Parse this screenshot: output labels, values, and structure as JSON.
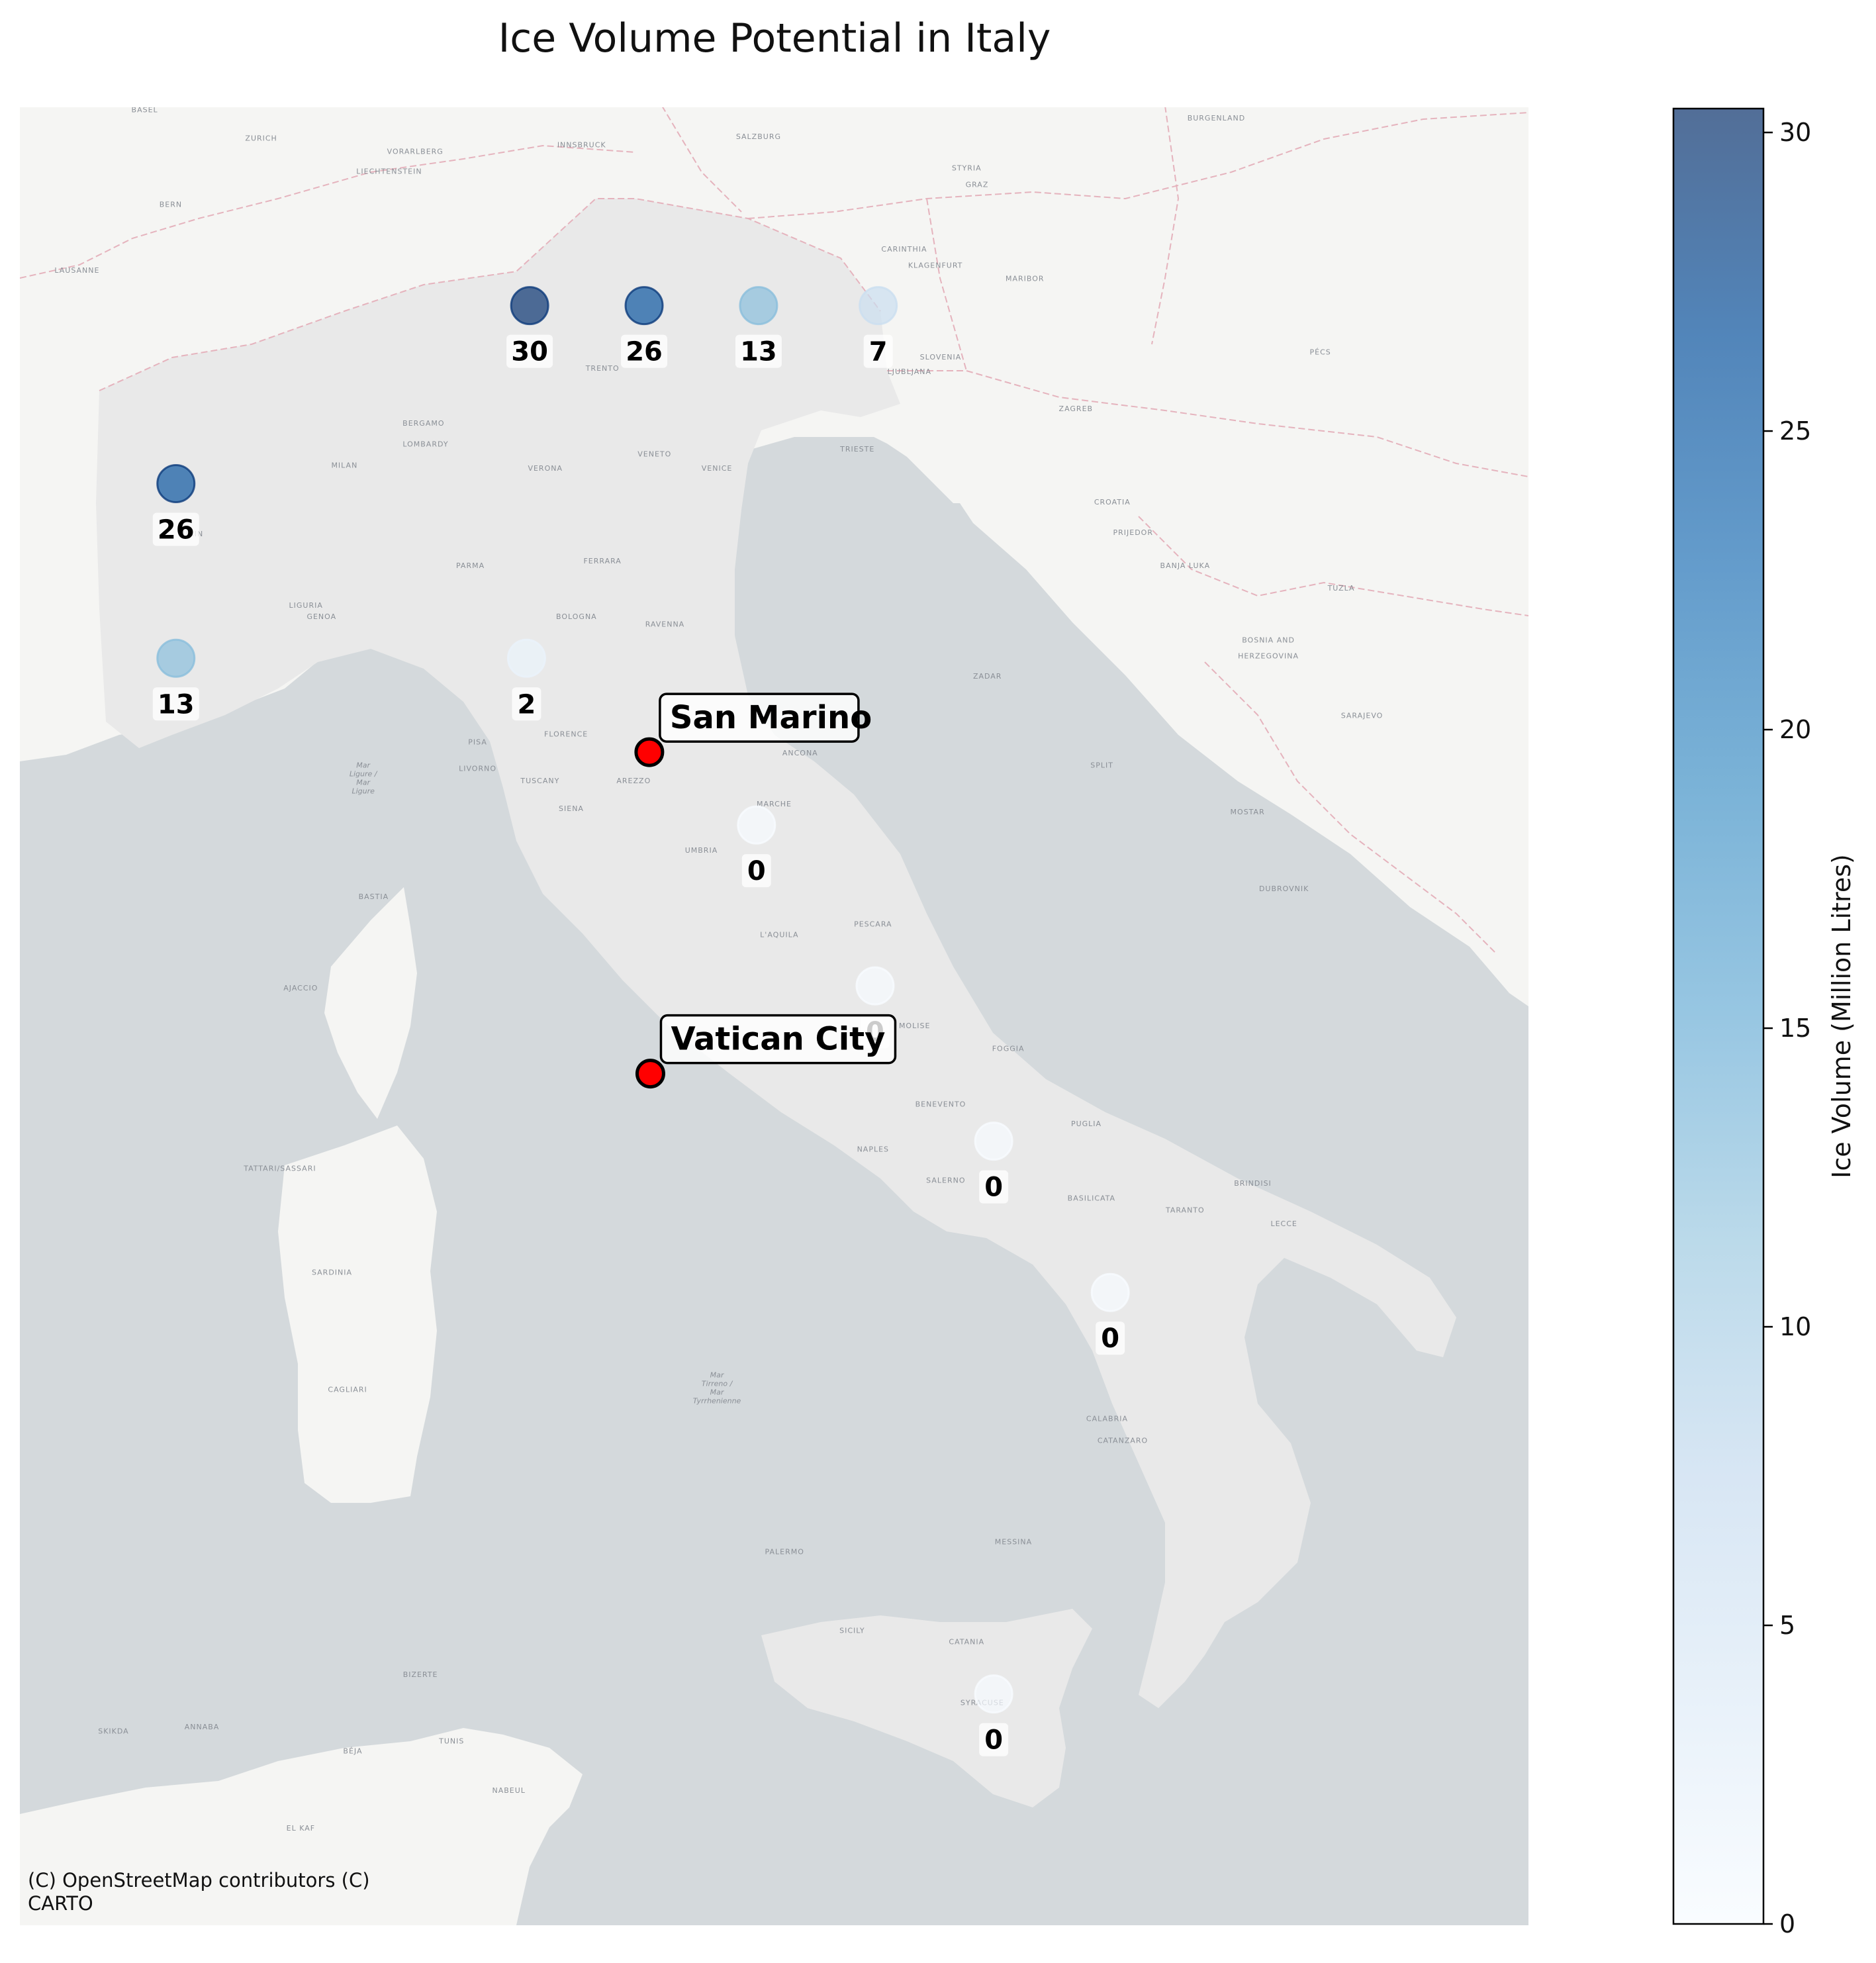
{
  "title": "Ice Volume Potential in Italy",
  "attribution": [
    "(C) OpenStreetMap contributors (C)",
    "CARTO"
  ],
  "colorbar": {
    "label": "Ice Volume (Million Litres)",
    "min": 0,
    "max": 30.4,
    "ticks": [
      "0",
      "5",
      "10",
      "15",
      "20",
      "25",
      "30"
    ],
    "tick_values": [
      0,
      5,
      10,
      15,
      20,
      25,
      30
    ],
    "colors": [
      "#f7fbff",
      "#deebf7",
      "#c6dbef",
      "#9ecae1",
      "#6baed6",
      "#4292c6",
      "#2171b5",
      "#08519c",
      "#08306b"
    ]
  },
  "colors": {
    "sea": "#d4d9dc",
    "land": "#f5f5f3",
    "italy": "#e9e9e9",
    "border": "#e5b3bd",
    "highlight": "#ff0000"
  },
  "map": {
    "lon_range": [
      6.0,
      20.5
    ],
    "lat_range": [
      35.5,
      47.5
    ]
  },
  "chart_data": {
    "type": "scatter",
    "title": "Ice Volume Potential in Italy",
    "colorbar_label": "Ice Volume (Million Litres)",
    "points": [
      {
        "lon": 10.9,
        "lat": 46.3,
        "value": 30,
        "label": "30"
      },
      {
        "lon": 12.0,
        "lat": 46.3,
        "value": 26,
        "label": "26"
      },
      {
        "lon": 13.1,
        "lat": 46.3,
        "value": 13,
        "label": "13"
      },
      {
        "lon": 14.25,
        "lat": 46.3,
        "value": 7,
        "label": "7"
      },
      {
        "lon": 7.5,
        "lat": 45.2,
        "value": 26,
        "label": "26"
      },
      {
        "lon": 7.5,
        "lat": 44.1,
        "value": 13,
        "label": "13"
      },
      {
        "lon": 10.87,
        "lat": 44.1,
        "value": 2,
        "label": "2"
      },
      {
        "lon": 13.08,
        "lat": 43.03,
        "value": 0,
        "label": "0"
      },
      {
        "lon": 14.22,
        "lat": 41.98,
        "value": 0,
        "label": "0"
      },
      {
        "lon": 15.36,
        "lat": 40.95,
        "value": 0,
        "label": "0"
      },
      {
        "lon": 16.48,
        "lat": 39.93,
        "value": 0,
        "label": "0"
      },
      {
        "lon": 15.36,
        "lat": 37.15,
        "value": 0,
        "label": "0"
      }
    ],
    "highlights": [
      {
        "name": "San Marino",
        "lon": 12.05,
        "lat": 43.5
      },
      {
        "name": "Vatican City",
        "lon": 12.06,
        "lat": 41.4
      }
    ]
  },
  "places": [
    {
      "name": "BASEL",
      "lon": 7.2,
      "lat": 47.47
    },
    {
      "name": "ZURICH",
      "lon": 8.32,
      "lat": 47.3
    },
    {
      "name": "VORARLBERG",
      "lon": 9.8,
      "lat": 47.22
    },
    {
      "name": "INNSBRUCK",
      "lon": 11.4,
      "lat": 47.26
    },
    {
      "name": "SALZBURG",
      "lon": 13.1,
      "lat": 47.31
    },
    {
      "name": "BURGENLAND",
      "lon": 17.5,
      "lat": 47.42
    },
    {
      "name": "LIECHTENSTEIN",
      "lon": 9.55,
      "lat": 47.1
    },
    {
      "name": "STYRIA",
      "lon": 15.1,
      "lat": 47.12
    },
    {
      "name": "GRAZ",
      "lon": 15.2,
      "lat": 47.02
    },
    {
      "name": "BERN",
      "lon": 7.45,
      "lat": 46.9
    },
    {
      "name": "CARINTHIA",
      "lon": 14.5,
      "lat": 46.63
    },
    {
      "name": "KLAGENFURT",
      "lon": 14.8,
      "lat": 46.53
    },
    {
      "name": "LAUSANNE",
      "lon": 6.55,
      "lat": 46.5
    },
    {
      "name": "MARIBOR",
      "lon": 15.66,
      "lat": 46.45
    },
    {
      "name": "SLOVENIA",
      "lon": 14.85,
      "lat": 45.97
    },
    {
      "name": "LJUBLJANA",
      "lon": 14.55,
      "lat": 45.88
    },
    {
      "name": "TRENTO",
      "lon": 11.6,
      "lat": 45.9
    },
    {
      "name": "BERGAMO",
      "lon": 9.88,
      "lat": 45.56
    },
    {
      "name": "LOMBARDY",
      "lon": 9.9,
      "lat": 45.43
    },
    {
      "name": "MILAN",
      "lon": 9.12,
      "lat": 45.3
    },
    {
      "name": "VENETO",
      "lon": 12.1,
      "lat": 45.37
    },
    {
      "name": "VERONA",
      "lon": 11.05,
      "lat": 45.28
    },
    {
      "name": "VENICE",
      "lon": 12.7,
      "lat": 45.28
    },
    {
      "name": "TRIESTE",
      "lon": 14.05,
      "lat": 45.4
    },
    {
      "name": "ZAGREB",
      "lon": 16.15,
      "lat": 45.65
    },
    {
      "name": "CROATIA",
      "lon": 16.5,
      "lat": 45.07
    },
    {
      "name": "PÉCS",
      "lon": 18.5,
      "lat": 46.0
    },
    {
      "name": "TURIN",
      "lon": 7.64,
      "lat": 44.87
    },
    {
      "name": "PARMA",
      "lon": 10.33,
      "lat": 44.67
    },
    {
      "name": "FERRARA",
      "lon": 11.6,
      "lat": 44.7
    },
    {
      "name": "BOLOGNA",
      "lon": 11.35,
      "lat": 44.35
    },
    {
      "name": "RAVENNA",
      "lon": 12.2,
      "lat": 44.3
    },
    {
      "name": "PRIJEDOR",
      "lon": 16.7,
      "lat": 44.88
    },
    {
      "name": "BANJA LUKA",
      "lon": 17.2,
      "lat": 44.67
    },
    {
      "name": "TUZLA",
      "lon": 18.7,
      "lat": 44.53
    },
    {
      "name": "GENOA",
      "lon": 8.9,
      "lat": 44.35
    },
    {
      "name": "LIGURIA",
      "lon": 8.75,
      "lat": 44.42
    },
    {
      "name": "BOSNIA AND",
      "lon": 18.0,
      "lat": 44.2
    },
    {
      "name": "HERZEGOVINA",
      "lon": 18.0,
      "lat": 44.1
    },
    {
      "name": "ZADAR",
      "lon": 15.3,
      "lat": 43.97
    },
    {
      "name": "SARAJEVO",
      "lon": 18.9,
      "lat": 43.72
    },
    {
      "name": "FLORENCE",
      "lon": 11.25,
      "lat": 43.6
    },
    {
      "name": "PISA",
      "lon": 10.4,
      "lat": 43.55
    },
    {
      "name": "LIVORNO",
      "lon": 10.4,
      "lat": 43.38
    },
    {
      "name": "TUSCANY",
      "lon": 11.0,
      "lat": 43.3
    },
    {
      "name": "AREZZO",
      "lon": 11.9,
      "lat": 43.3
    },
    {
      "name": "ANCONA",
      "lon": 13.5,
      "lat": 43.48
    },
    {
      "name": "SPLIT",
      "lon": 16.4,
      "lat": 43.4
    },
    {
      "name": "MARCHE",
      "lon": 13.25,
      "lat": 43.15
    },
    {
      "name": "MOSTAR",
      "lon": 17.8,
      "lat": 43.1
    },
    {
      "name": "SIENA",
      "lon": 11.3,
      "lat": 43.12
    },
    {
      "name": "UMBRIA",
      "lon": 12.55,
      "lat": 42.85
    },
    {
      "name": "BASTIA",
      "lon": 9.4,
      "lat": 42.55
    },
    {
      "name": "PESCARA",
      "lon": 14.2,
      "lat": 42.37
    },
    {
      "name": "L'AQUILA",
      "lon": 13.3,
      "lat": 42.3
    },
    {
      "name": "DUBROVNIK",
      "lon": 18.15,
      "lat": 42.6
    },
    {
      "name": "AJACCIO",
      "lon": 8.7,
      "lat": 41.95
    },
    {
      "name": "MOLISE",
      "lon": 14.6,
      "lat": 41.7
    },
    {
      "name": "FOGGIA",
      "lon": 15.5,
      "lat": 41.55
    },
    {
      "name": "BENEVENTO",
      "lon": 14.85,
      "lat": 41.18
    },
    {
      "name": "PUGLIA",
      "lon": 16.25,
      "lat": 41.05
    },
    {
      "name": "NAPLES",
      "lon": 14.2,
      "lat": 40.88
    },
    {
      "name": "SALERNO",
      "lon": 14.9,
      "lat": 40.67
    },
    {
      "name": "BASILICATA",
      "lon": 16.3,
      "lat": 40.55
    },
    {
      "name": "BRINDISI",
      "lon": 17.85,
      "lat": 40.65
    },
    {
      "name": "TARANTO",
      "lon": 17.2,
      "lat": 40.47
    },
    {
      "name": "LECCE",
      "lon": 18.15,
      "lat": 40.38
    },
    {
      "name": "TATTARI/SASSARI",
      "lon": 8.5,
      "lat": 40.75
    },
    {
      "name": "SARDINIA",
      "lon": 9.0,
      "lat": 40.05
    },
    {
      "name": "CAGLIARI",
      "lon": 9.15,
      "lat": 39.25
    },
    {
      "name": "CALABRIA",
      "lon": 16.45,
      "lat": 39.05
    },
    {
      "name": "CATANZARO",
      "lon": 16.6,
      "lat": 38.9
    },
    {
      "name": "PALERMO",
      "lon": 13.35,
      "lat": 38.13
    },
    {
      "name": "MESSINA",
      "lon": 15.55,
      "lat": 38.2
    },
    {
      "name": "SICILY",
      "lon": 14.0,
      "lat": 37.58
    },
    {
      "name": "CATANIA",
      "lon": 15.1,
      "lat": 37.5
    },
    {
      "name": "SYRACUSE",
      "lon": 15.25,
      "lat": 37.07
    },
    {
      "name": "BIZERTE",
      "lon": 9.85,
      "lat": 37.27
    },
    {
      "name": "TUNIS",
      "lon": 10.15,
      "lat": 36.8
    },
    {
      "name": "BÉJA",
      "lon": 9.2,
      "lat": 36.73
    },
    {
      "name": "SKIKDA",
      "lon": 6.9,
      "lat": 36.87
    },
    {
      "name": "ANNABA",
      "lon": 7.75,
      "lat": 36.9
    },
    {
      "name": "NABEUL",
      "lon": 10.7,
      "lat": 36.45
    },
    {
      "name": "EL KAF",
      "lon": 8.7,
      "lat": 36.18
    }
  ],
  "seas": [
    {
      "lines": [
        "Mar",
        "Ligure /",
        "Mar",
        "Ligure"
      ],
      "lon": 9.3,
      "lat": 43.4
    },
    {
      "lines": [
        "Mar",
        "Tirreno /",
        "Mar",
        "Tyrrhenienne"
      ],
      "lon": 12.7,
      "lat": 39.35
    }
  ]
}
